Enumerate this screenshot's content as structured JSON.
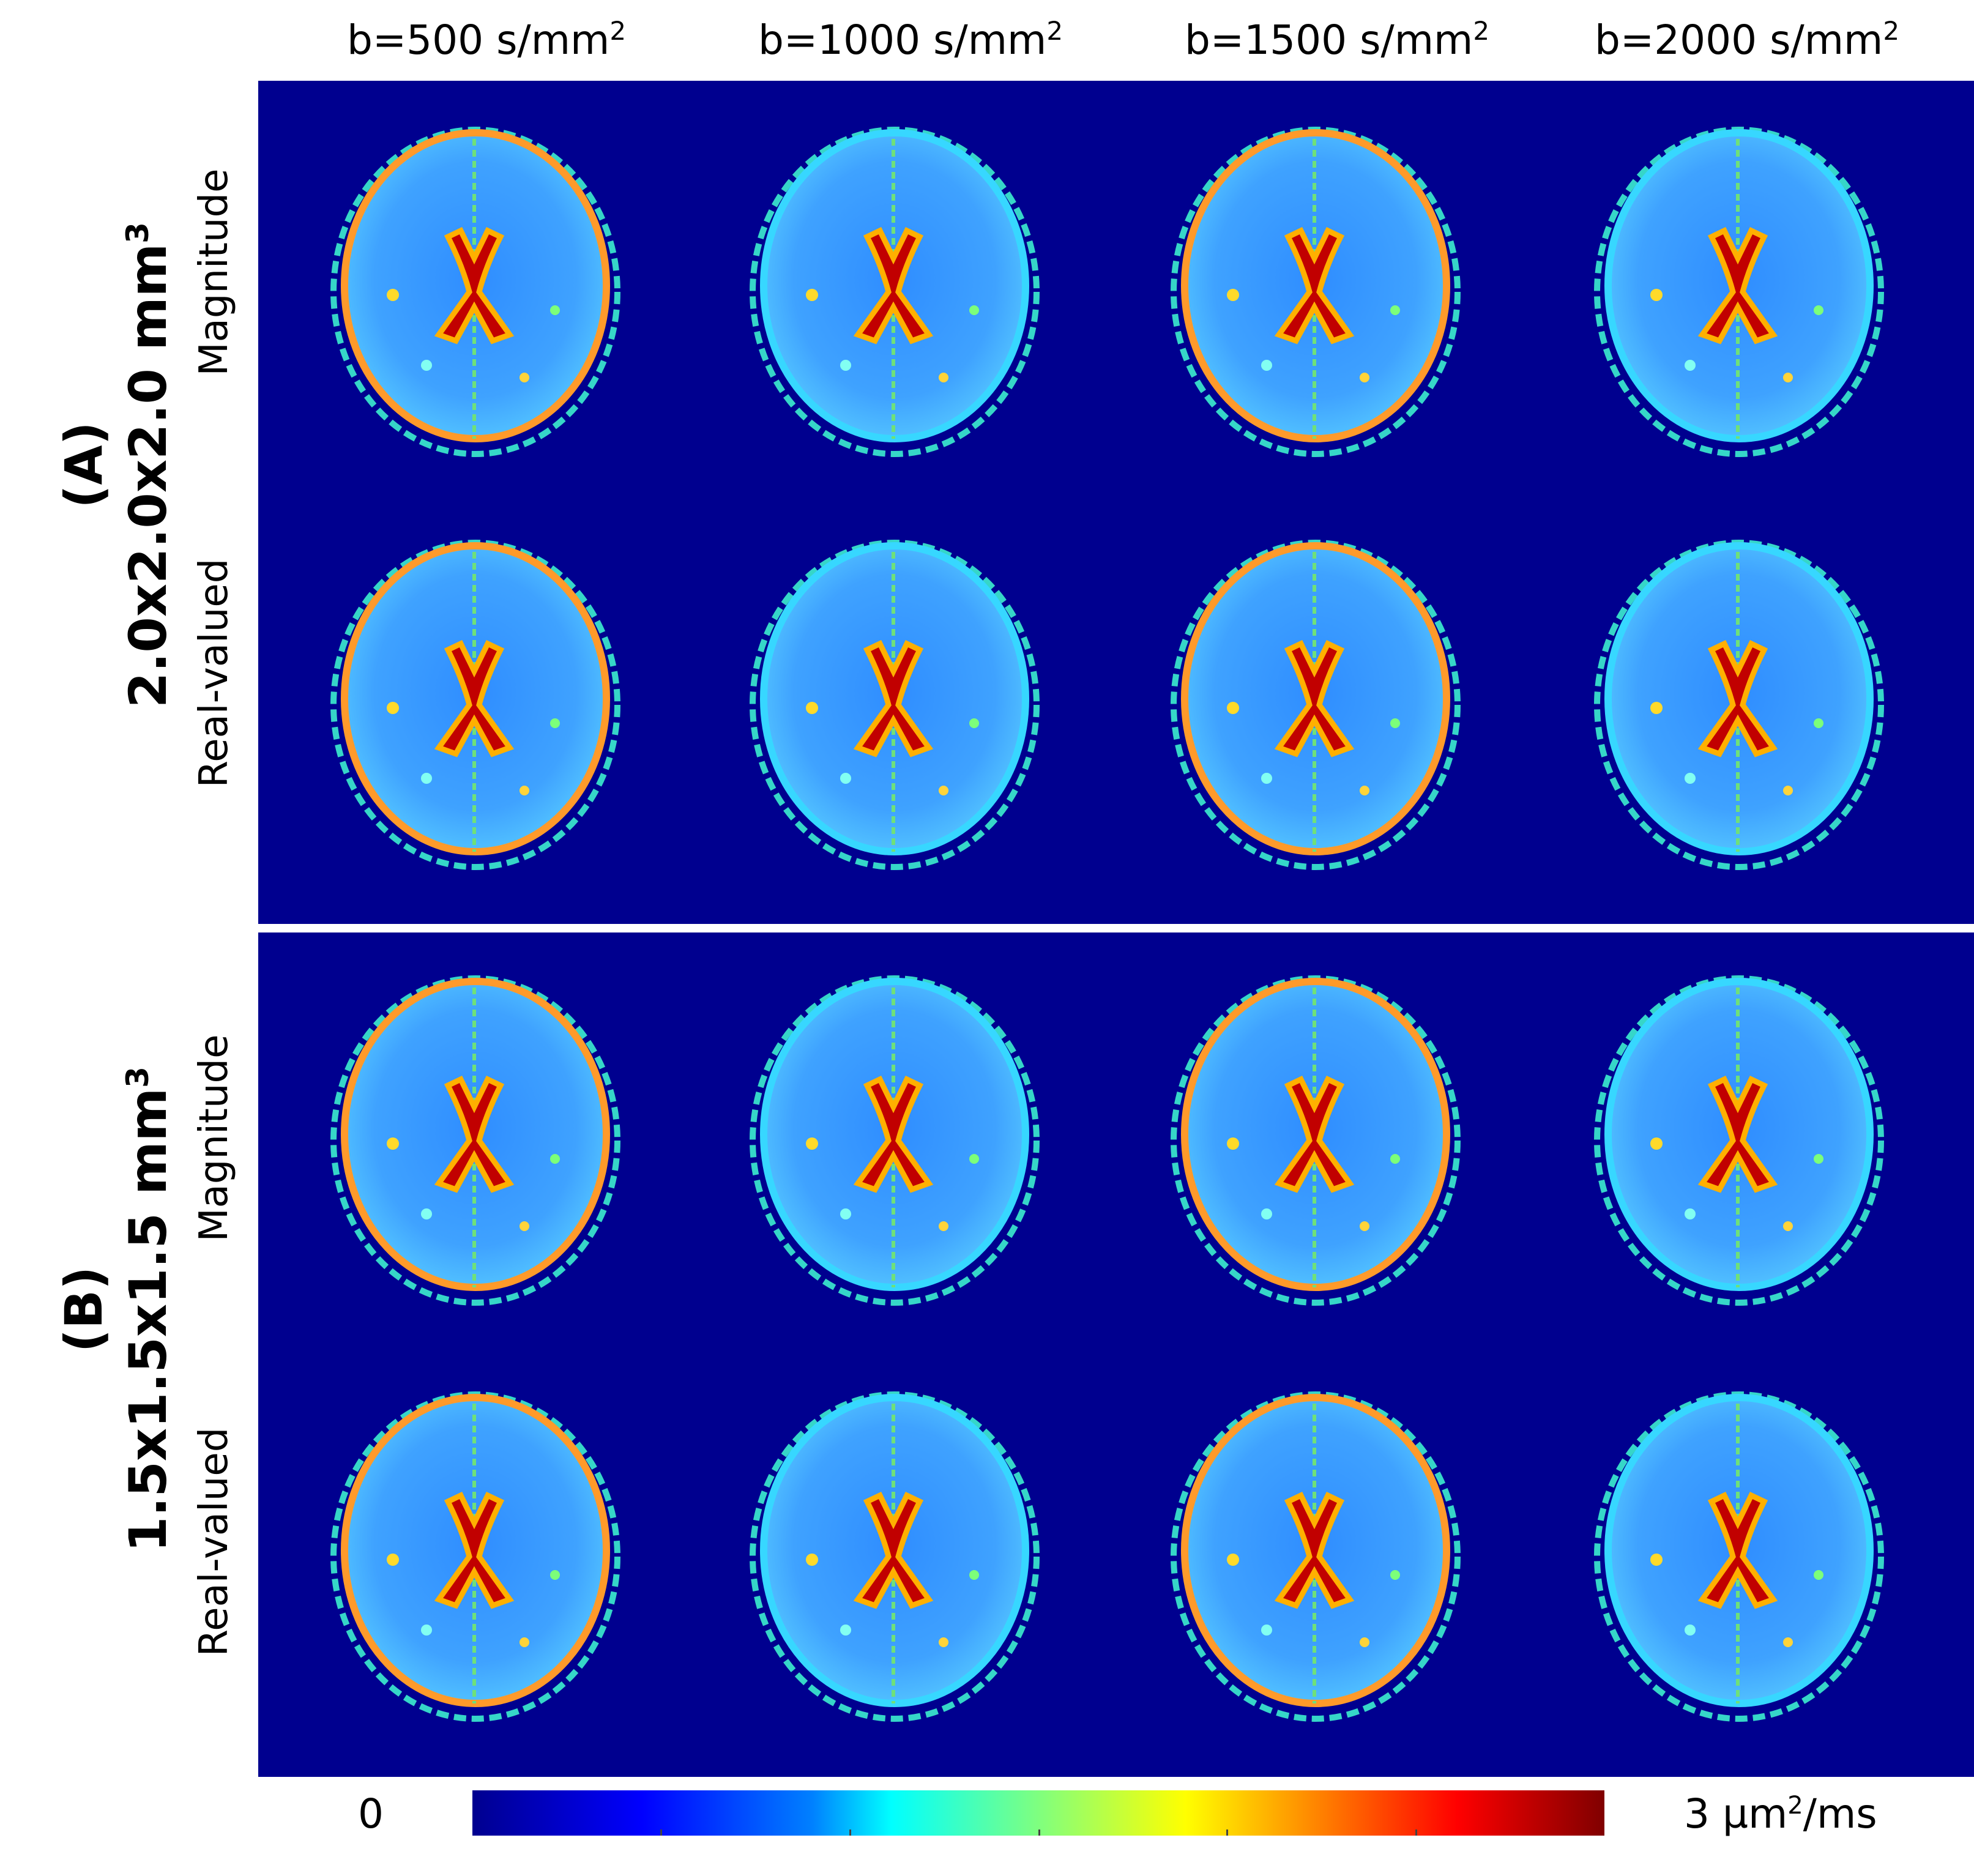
{
  "columns": [
    {
      "prefix": "b=500 s/mm",
      "sup": "2"
    },
    {
      "prefix": "b=1000 s/mm",
      "sup": "2"
    },
    {
      "prefix": "b=1500 s/mm",
      "sup": "2"
    },
    {
      "prefix": "b=2000 s/mm",
      "sup": "2"
    }
  ],
  "groups": [
    {
      "id": "A",
      "label": "(A)",
      "resolution": "2.0x2.0x2.0 mm",
      "resolution_sup": "3",
      "rows": [
        "Magnitude",
        "Real-valued"
      ]
    },
    {
      "id": "B",
      "label": "(B)",
      "resolution": "1.5x1.5x1.5 mm",
      "resolution_sup": "3",
      "rows": [
        "Magnitude",
        "Real-valued"
      ]
    }
  ],
  "colorbar": {
    "min_label": "0",
    "max_label": "3  µm",
    "max_sup": "2",
    "max_suffix": "/ms",
    "colormap": "jet",
    "background": "#00008f"
  }
}
